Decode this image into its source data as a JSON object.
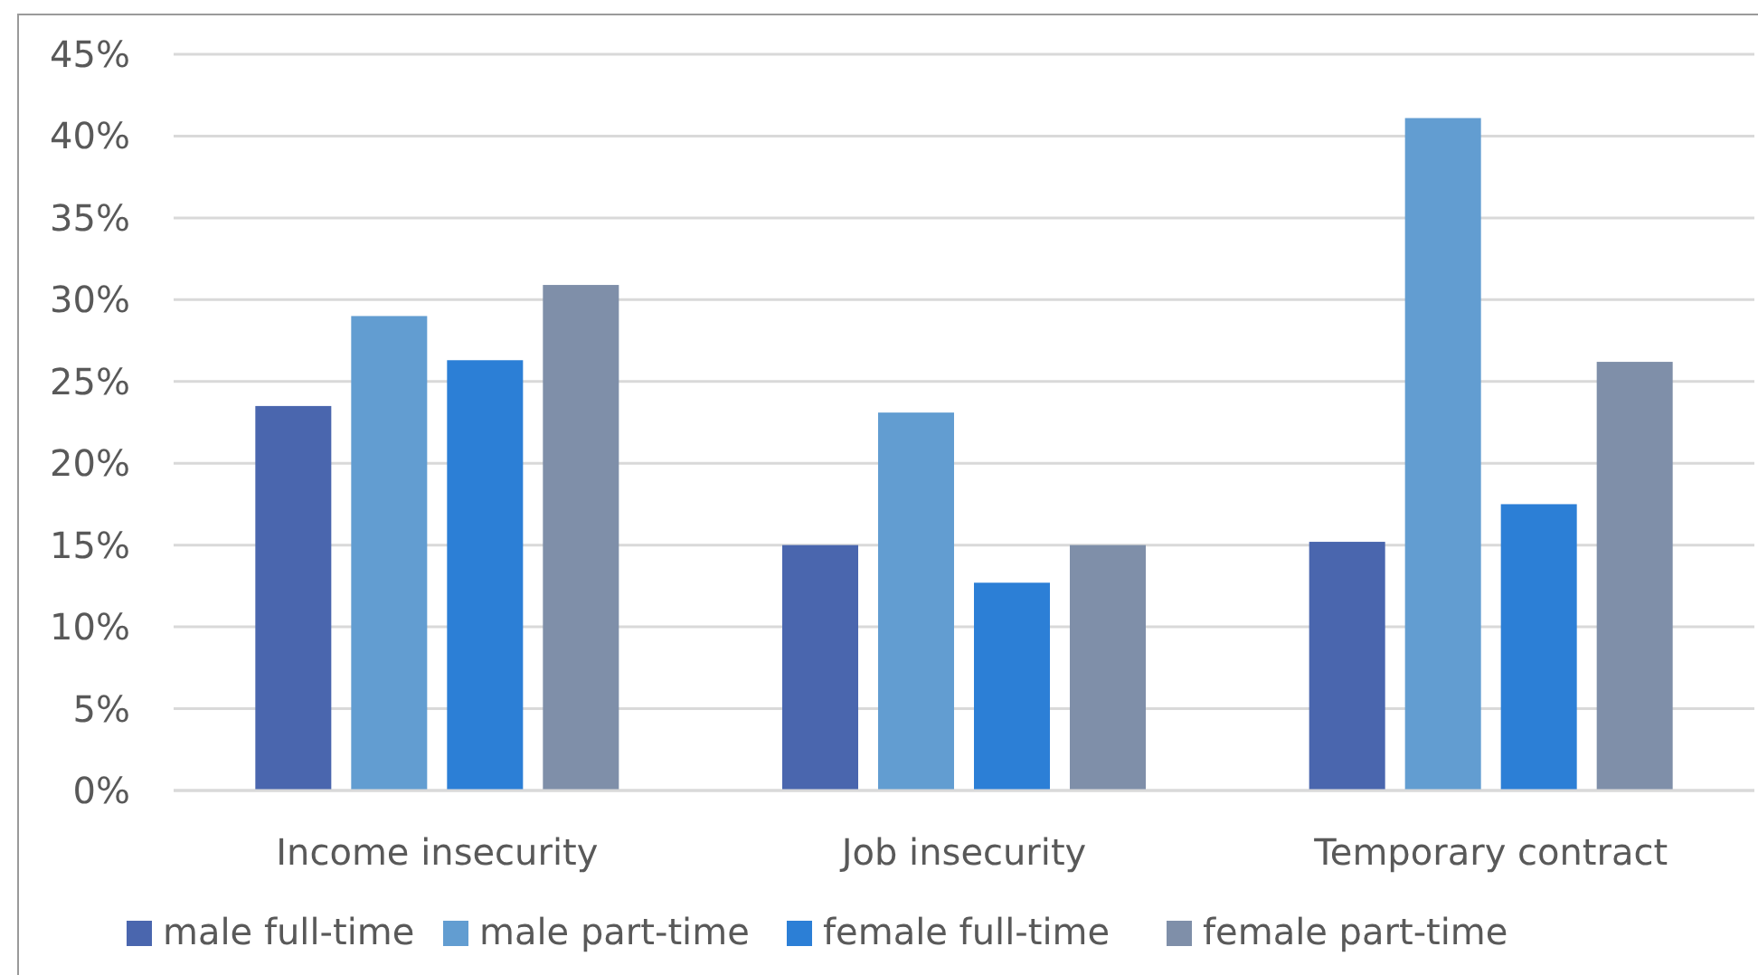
{
  "chart_data": {
    "type": "bar",
    "categories": [
      "Income insecurity",
      "Job insecurity",
      "Temporary contract"
    ],
    "series": [
      {
        "name": "male full-time",
        "color": "#4a66ae",
        "values": [
          23.5,
          15,
          15.2
        ]
      },
      {
        "name": "male part-time",
        "color": "#629dd1",
        "values": [
          29,
          23.1,
          41.1
        ]
      },
      {
        "name": "female full-time",
        "color": "#2c7fd6",
        "values": [
          26.3,
          12.7,
          17.5
        ]
      },
      {
        "name": "female part-time",
        "color": "#7f8fa9",
        "values": [
          30.9,
          15,
          26.2
        ]
      }
    ],
    "ylim": [
      0,
      45
    ],
    "yticks": [
      {
        "value": 0,
        "label": "0%"
      },
      {
        "value": 5,
        "label": "5%"
      },
      {
        "value": 10,
        "label": "10%"
      },
      {
        "value": 15,
        "label": "15%"
      },
      {
        "value": 20,
        "label": "20%"
      },
      {
        "value": 25,
        "label": "25%"
      },
      {
        "value": 30,
        "label": "30%"
      },
      {
        "value": 35,
        "label": "35%"
      },
      {
        "value": 40,
        "label": "40%"
      },
      {
        "value": 45,
        "label": "45%"
      }
    ],
    "grid": "y",
    "legend": "bottom"
  }
}
